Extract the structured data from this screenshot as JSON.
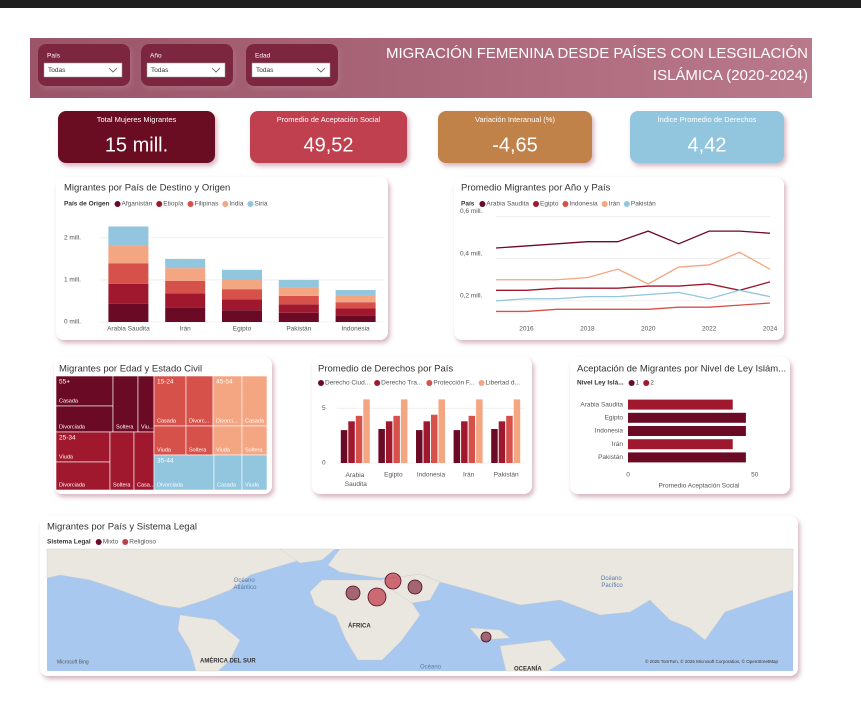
{
  "filters": [
    {
      "label": "País",
      "value": "Todas"
    },
    {
      "label": "Año",
      "value": "Todas"
    },
    {
      "label": "Edad",
      "value": "Todas"
    }
  ],
  "header": {
    "title_line1": "MIGRACIÓN FEMENINA DESDE PAÍSES CON LESGILACIÓN",
    "title_line2": "ISLÁMICA (2020-2024)"
  },
  "kpis": [
    {
      "label": "Total Mujeres Migrantes",
      "value": "15 mill.",
      "color": "#6b0a24"
    },
    {
      "label": "Promedio de Aceptación Social",
      "value": "49,52",
      "color": "#c0404f"
    },
    {
      "label": "Variación Interanual (%)",
      "value": "-4,65",
      "color": "#c0824a"
    },
    {
      "label": "Índice Promedio de Derechos",
      "value": "4,42",
      "color": "#92c5de"
    }
  ],
  "chart_data": [
    {
      "type": "stacked_bar",
      "title": "Migrantes por País de Destino y Origen",
      "legend_title": "País de Origen",
      "categories": [
        "Arabia Saudita",
        "Irán",
        "Egipto",
        "Pakistán",
        "Indonesia"
      ],
      "series": [
        {
          "name": "Afganistán",
          "color": "#6b0a24",
          "values": [
            0.43,
            0.35,
            0.28,
            0.22,
            0.16
          ]
        },
        {
          "name": "Etiopía",
          "color": "#a0182e",
          "values": [
            0.48,
            0.33,
            0.26,
            0.2,
            0.16
          ]
        },
        {
          "name": "Filipinas",
          "color": "#d6514a",
          "values": [
            0.48,
            0.3,
            0.24,
            0.2,
            0.15
          ]
        },
        {
          "name": "India",
          "color": "#f4a582",
          "values": [
            0.43,
            0.3,
            0.23,
            0.19,
            0.15
          ]
        },
        {
          "name": "Siria",
          "color": "#92c5de",
          "values": [
            0.45,
            0.22,
            0.23,
            0.19,
            0.14
          ]
        }
      ],
      "ylim": [
        0,
        2.4
      ],
      "yticks": [
        {
          "value": 0,
          "label": "0 mill."
        },
        {
          "value": 1,
          "label": "1 mill."
        },
        {
          "value": 2,
          "label": "2 mill."
        }
      ],
      "grid": true
    },
    {
      "type": "line",
      "title": "Promedio Migrantes por Año y País",
      "legend_title": "País",
      "x": [
        2015,
        2016,
        2017,
        2018,
        2019,
        2020,
        2021,
        2022,
        2023,
        2024
      ],
      "series": [
        {
          "name": "Arabia Saudita",
          "color": "#6b0a24",
          "values": [
            0.45,
            0.46,
            0.47,
            0.48,
            0.48,
            0.53,
            0.47,
            0.53,
            0.53,
            0.52
          ]
        },
        {
          "name": "Egipto",
          "color": "#a0182e",
          "values": [
            0.25,
            0.25,
            0.26,
            0.26,
            0.26,
            0.27,
            0.27,
            0.28,
            0.25,
            0.29
          ]
        },
        {
          "name": "Indonesia",
          "color": "#d6514a",
          "values": [
            0.15,
            0.15,
            0.16,
            0.16,
            0.16,
            0.16,
            0.17,
            0.17,
            0.18,
            0.19
          ]
        },
        {
          "name": "Irán",
          "color": "#f4a582",
          "values": [
            0.3,
            0.3,
            0.3,
            0.31,
            0.35,
            0.28,
            0.36,
            0.37,
            0.43,
            0.35
          ]
        },
        {
          "name": "Pakistán",
          "color": "#92c5de",
          "values": [
            0.2,
            0.21,
            0.21,
            0.22,
            0.22,
            0.23,
            0.24,
            0.21,
            0.25,
            0.22
          ]
        }
      ],
      "xlim": [
        2015,
        2024
      ],
      "xticks": [
        2016,
        2018,
        2020,
        2022,
        2024
      ],
      "ylim": [
        0.1,
        0.63
      ],
      "yticks": [
        {
          "value": 0.2,
          "label": "0,2 mill."
        },
        {
          "value": 0.4,
          "label": "0,4 mill."
        },
        {
          "value": 0.6,
          "label": "0,6 mill."
        }
      ],
      "grid": true
    },
    {
      "type": "treemap",
      "title": "Migrantes por Edad y Estado Civil",
      "groups": [
        {
          "name": "55+",
          "color": "#6b0a24",
          "cells": [
            "Casada",
            "Divorciada",
            "Soltera",
            "Viu..."
          ]
        },
        {
          "name": "25-34",
          "color": "#a0182e",
          "cells": [
            "Viuda",
            "Divorciada",
            "Soltera",
            "Casa..."
          ]
        },
        {
          "name": "15-24",
          "color": "#d6514a",
          "cells": [
            "Casada",
            "Divorc...",
            "Viuda",
            "Soltera"
          ]
        },
        {
          "name": "45-54",
          "color": "#f4a582",
          "cells": [
            "Divorci...",
            "Casada",
            "Viuda",
            "Soltera"
          ]
        },
        {
          "name": "35-44",
          "color": "#92c5de",
          "cells": [
            "Divorciada",
            "Casada",
            "Viuda"
          ]
        }
      ]
    },
    {
      "type": "grouped_bar",
      "title": "Promedio de Derechos por País",
      "categories": [
        "Arabia Saudita",
        "Egipto",
        "Indonesia",
        "Irán",
        "Pakistán"
      ],
      "series": [
        {
          "name": "Derecho Ciud...",
          "color": "#6b0a24",
          "values": [
            3.0,
            3.1,
            3.0,
            3.0,
            3.1
          ]
        },
        {
          "name": "Derecho Tra...",
          "color": "#a0182e",
          "values": [
            3.8,
            3.8,
            3.8,
            3.8,
            3.8
          ]
        },
        {
          "name": "Protección F...",
          "color": "#d6514a",
          "values": [
            4.3,
            4.3,
            4.4,
            4.3,
            4.3
          ]
        },
        {
          "name": "Libertad d...",
          "color": "#f4a582",
          "values": [
            5.8,
            5.8,
            5.8,
            5.8,
            5.8
          ]
        }
      ],
      "ylim": [
        0,
        6.2
      ],
      "yticks": [
        0,
        5
      ],
      "grid": true
    },
    {
      "type": "hbar",
      "title": "Aceptación de Migrantes por Nivel de Ley Islám...",
      "legend_title": "Nivel Ley Islá...",
      "categories": [
        "Arabia Saudita",
        "Egipto",
        "Indonesia",
        "Irán",
        "Pakistán"
      ],
      "series": [
        {
          "name": "1",
          "color": "#6b0a24",
          "values": [
            null,
            46.5,
            46.5,
            null,
            46.5
          ]
        },
        {
          "name": "2",
          "color": "#a0182e",
          "values": [
            41.3,
            null,
            null,
            41.3,
            null
          ]
        }
      ],
      "xlim": [
        0,
        56
      ],
      "xticks": [
        0,
        50
      ],
      "xlabel": "Promedio Aceptación Social"
    }
  ],
  "map": {
    "title": "Migrantes por País y Sistema Legal",
    "legend_title": "Sistema Legal",
    "legend": [
      {
        "name": "Mixto",
        "color": "#6b0a24"
      },
      {
        "name": "Religioso",
        "color": "#c0404f"
      }
    ],
    "labels": {
      "atlantic": "Océano Atlántico",
      "pacific": "Océano Pacífico",
      "africa": "ÁFRICA",
      "south_america": "AMÉRICA DEL SUR",
      "oceania": "OCEANÍA",
      "ocean": "Océano"
    },
    "brand": "Microsoft Bing",
    "attribution": "© 2025 TomTom, © 2025 Microsoft Corporation, © OpenStreetMap"
  }
}
